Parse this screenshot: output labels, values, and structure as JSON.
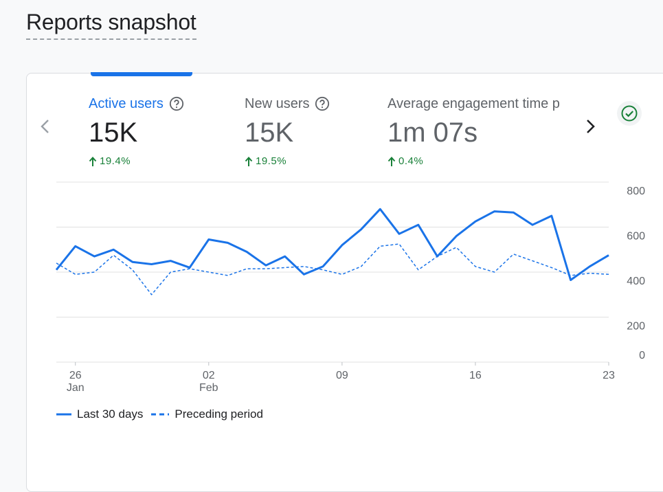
{
  "page": {
    "title": "Reports snapshot"
  },
  "metrics": [
    {
      "label": "Active users",
      "value": "15K",
      "change": "19.4%"
    },
    {
      "label": "New users",
      "value": "15K",
      "change": "19.5%"
    },
    {
      "label": "Average engagement time p",
      "value": "1m 07s",
      "change": "0.4%"
    }
  ],
  "colors": {
    "accent": "#1a73e8",
    "positive": "#188038",
    "gridline": "#e0e0e0"
  },
  "icons": {
    "prev": "chevron-left-icon",
    "next": "chevron-right-icon",
    "status": "check-circle-icon",
    "help": "help-circle-icon",
    "up": "arrow-up-icon"
  },
  "legend": {
    "current": "Last 30 days",
    "previous": "Preceding period"
  },
  "chart_data": {
    "type": "line",
    "title": "",
    "xlabel": "",
    "ylabel": "",
    "ylim": [
      0,
      800
    ],
    "y_ticks": [
      "800",
      "600",
      "400",
      "200",
      "0"
    ],
    "x_ticks": [
      {
        "day": 1,
        "label": "26",
        "sub": "Jan"
      },
      {
        "day": 8,
        "label": "02",
        "sub": "Feb"
      },
      {
        "day": 15,
        "label": "09",
        "sub": ""
      },
      {
        "day": 22,
        "label": "16",
        "sub": ""
      },
      {
        "day": 29,
        "label": "23",
        "sub": ""
      }
    ],
    "x": [
      0,
      1,
      2,
      3,
      4,
      5,
      6,
      7,
      8,
      9,
      10,
      11,
      12,
      13,
      14,
      15,
      16,
      17,
      18,
      19,
      20,
      21,
      22,
      23,
      24,
      25,
      26,
      27,
      28,
      29
    ],
    "series": [
      {
        "name": "Last 30 days",
        "style": "solid",
        "values": [
          410,
          515,
          470,
          500,
          445,
          435,
          450,
          420,
          545,
          530,
          490,
          430,
          470,
          390,
          425,
          520,
          590,
          680,
          570,
          610,
          470,
          560,
          625,
          670,
          665,
          610,
          650,
          365,
          425,
          475
        ]
      },
      {
        "name": "Preceding period",
        "style": "dashed",
        "values": [
          440,
          390,
          400,
          475,
          410,
          300,
          400,
          415,
          400,
          385,
          415,
          415,
          420,
          425,
          410,
          390,
          425,
          515,
          525,
          410,
          470,
          510,
          425,
          400,
          480,
          450,
          420,
          385,
          395,
          390
        ]
      }
    ]
  }
}
